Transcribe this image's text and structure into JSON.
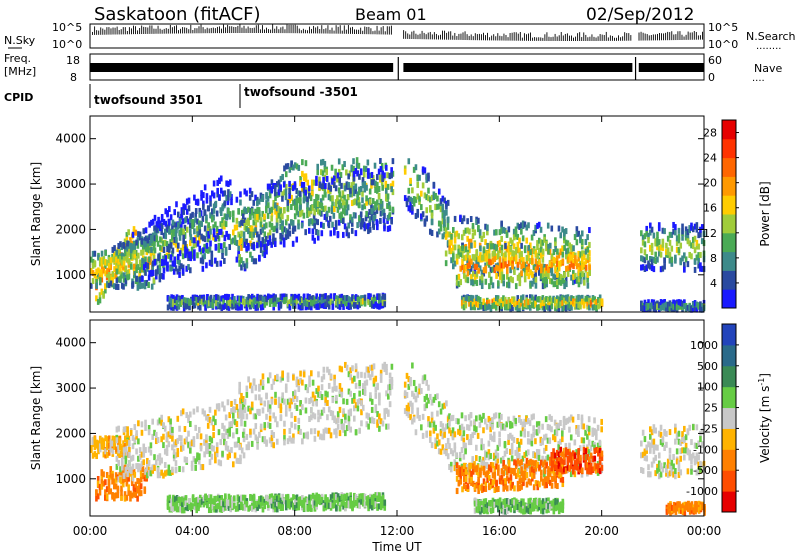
{
  "header": {
    "title": "Saskatoon (fitACF)",
    "beam": "Beam 01",
    "date": "02/Sep/2012"
  },
  "status_panel": {
    "nsky_label": "N.Sky",
    "nsky_ticks": [
      "10^5",
      "10^0"
    ],
    "nsearch_label": "N.Search",
    "freq_label_1": "Freq.",
    "freq_label_2": "[MHz]",
    "freq_ticks": [
      "18",
      "8"
    ],
    "nave_label": "Nave",
    "nave_ticks": [
      "60",
      "0"
    ],
    "cpid_label": "CPID",
    "cpid_entries": [
      "twofsound 3501",
      "twofsound -3501"
    ]
  },
  "colors": {
    "power": [
      "#1a1aff",
      "#2a4aa0",
      "#3d8a8a",
      "#4aaa55",
      "#a0cc3a",
      "#ffcc00",
      "#ff9900",
      "#ff6600",
      "#ff3300",
      "#e60000"
    ],
    "velocity": [
      "#2244bb",
      "#2a6a8a",
      "#3a8a55",
      "#66cc44",
      "#c8c8c8",
      "#ffb300",
      "#ff8000",
      "#ff4d00",
      "#e60000"
    ],
    "ground_scatter": "#c8c8c8"
  },
  "chart_data": [
    {
      "type": "heatmap",
      "name": "power",
      "ylabel": "Slant Range [km]",
      "ylim": [
        180,
        4500
      ],
      "y_ticks": [
        1000,
        2000,
        3000,
        4000
      ],
      "colorbar_label": "Power [dB]",
      "colorbar_ticks": [
        4,
        8,
        12,
        16,
        20,
        24,
        28
      ],
      "colorbar_range": [
        0,
        30
      ],
      "scatter_bands": [
        {
          "t0": 0.2,
          "t1": 1.8,
          "r0": 700,
          "r1": 1700,
          "dr0": 700,
          "dr1": 1000,
          "level": 22
        },
        {
          "t0": 0.0,
          "t1": 2.5,
          "r0": 1100,
          "r1": 1300,
          "dr0": 700,
          "dr1": 1200,
          "level": 18
        },
        {
          "t0": 1.0,
          "t1": 6.0,
          "r0": 1200,
          "r1": 2100,
          "dr0": 1100,
          "dr1": 1500,
          "level": 14
        },
        {
          "t0": 2.0,
          "t1": 5.5,
          "r0": 1500,
          "r1": 2500,
          "dr0": 1200,
          "dr1": 1600,
          "level": 9
        },
        {
          "t0": 5.8,
          "t1": 8.5,
          "r0": 1600,
          "r1": 3100,
          "dr0": 1200,
          "dr1": 1800,
          "level": 16
        },
        {
          "t0": 8.5,
          "t1": 11.8,
          "r0": 3000,
          "r1": 3000,
          "dr0": 1800,
          "dr1": 1800,
          "level": 14
        },
        {
          "t0": 6.0,
          "t1": 11.8,
          "r0": 2200,
          "r1": 2700,
          "dr0": 1300,
          "dr1": 1500,
          "level": 12
        },
        {
          "t0": 12.2,
          "t1": 14.0,
          "r0": 3300,
          "r1": 2000,
          "dr0": 1400,
          "dr1": 1200,
          "level": 14
        },
        {
          "t0": 13.8,
          "t1": 19.5,
          "r0": 1700,
          "r1": 1400,
          "dr0": 1200,
          "dr1": 1200,
          "level": 17
        },
        {
          "t0": 14.3,
          "t1": 19.5,
          "r0": 1200,
          "r1": 1200,
          "dr0": 900,
          "dr1": 900,
          "level": 20
        },
        {
          "t0": 21.5,
          "t1": 24.0,
          "r0": 1600,
          "r1": 1600,
          "dr0": 1000,
          "dr1": 1000,
          "level": 14
        },
        {
          "t0": 3.0,
          "t1": 11.5,
          "r0": 380,
          "r1": 420,
          "dr0": 250,
          "dr1": 250,
          "level": 12
        },
        {
          "t0": 14.5,
          "t1": 20.0,
          "r0": 380,
          "r1": 380,
          "dr0": 250,
          "dr1": 250,
          "level": 18
        },
        {
          "t0": 21.5,
          "t1": 24.0,
          "r0": 300,
          "r1": 300,
          "dr0": 200,
          "dr1": 200,
          "level": 10
        }
      ]
    },
    {
      "type": "heatmap",
      "name": "velocity",
      "ylabel": "Slant Range [km]",
      "xlabel": "Time UT",
      "ylim": [
        180,
        4500
      ],
      "y_ticks": [
        1000,
        2000,
        3000,
        4000
      ],
      "x_ticks": [
        "00:00",
        "04:00",
        "08:00",
        "12:00",
        "16:00",
        "20:00",
        "00:00"
      ],
      "x_tick_hours": [
        0,
        4,
        8,
        12,
        16,
        20,
        24
      ],
      "colorbar_label": "Velocity [m s^-1]",
      "colorbar_ticks": [
        "1000",
        "500",
        "100",
        "25",
        "-25",
        "-100",
        "-500",
        "-1000"
      ],
      "scatter_bands": [
        {
          "t0": 0.2,
          "t1": 2.2,
          "r0": 900,
          "r1": 900,
          "dr0": 700,
          "dr1": 700,
          "level": 6
        },
        {
          "t0": 0.0,
          "t1": 1.5,
          "r0": 1700,
          "r1": 1700,
          "dr0": 400,
          "dr1": 400,
          "level": 5
        },
        {
          "t0": 1.0,
          "t1": 6.0,
          "r0": 1500,
          "r1": 2100,
          "dr0": 1200,
          "dr1": 1500,
          "level": 4
        },
        {
          "t0": 5.8,
          "t1": 11.8,
          "r0": 2400,
          "r1": 2900,
          "dr0": 1600,
          "dr1": 1500,
          "level": 4
        },
        {
          "t0": 3.0,
          "t1": 11.5,
          "r0": 450,
          "r1": 500,
          "dr0": 300,
          "dr1": 300,
          "level": 3
        },
        {
          "t0": 12.2,
          "t1": 14.0,
          "r0": 3000,
          "r1": 2000,
          "dr0": 1600,
          "dr1": 1200,
          "level": 4
        },
        {
          "t0": 14.0,
          "t1": 20.0,
          "r0": 1800,
          "r1": 1700,
          "dr0": 1300,
          "dr1": 1300,
          "level": 4
        },
        {
          "t0": 14.3,
          "t1": 18.5,
          "r0": 1000,
          "r1": 1150,
          "dr0": 600,
          "dr1": 600,
          "level": 6
        },
        {
          "t0": 18.0,
          "t1": 20.0,
          "r0": 1400,
          "r1": 1400,
          "dr0": 500,
          "dr1": 500,
          "level": 7
        },
        {
          "t0": 21.5,
          "t1": 24.0,
          "r0": 1600,
          "r1": 1600,
          "dr0": 1100,
          "dr1": 1100,
          "level": 4
        },
        {
          "t0": 22.5,
          "t1": 24.0,
          "r0": 350,
          "r1": 350,
          "dr0": 200,
          "dr1": 200,
          "level": 6
        },
        {
          "t0": 15.0,
          "t1": 18.5,
          "r0": 400,
          "r1": 400,
          "dr0": 250,
          "dr1": 250,
          "level": 3
        }
      ]
    }
  ]
}
